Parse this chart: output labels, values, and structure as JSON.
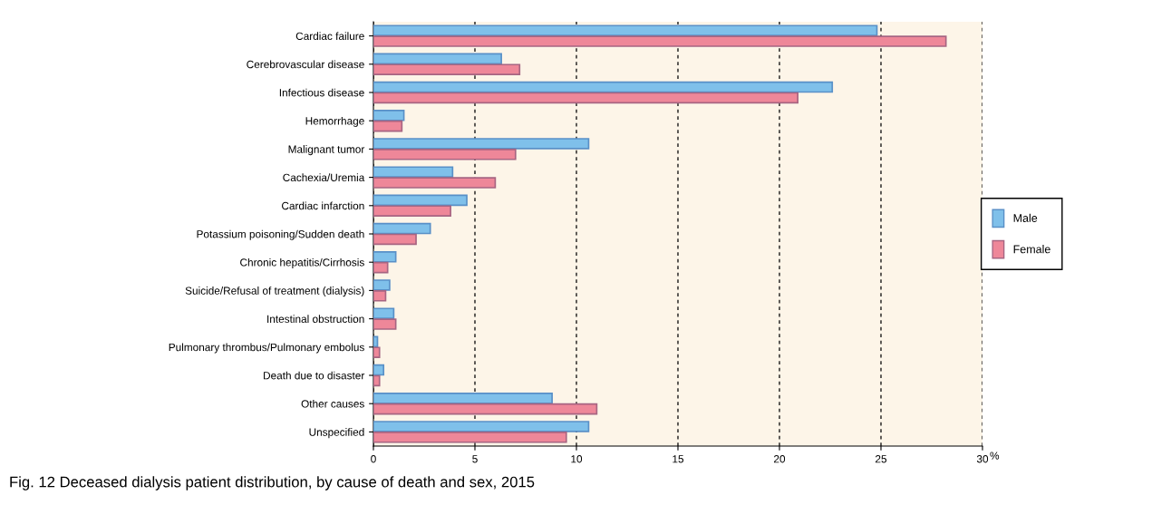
{
  "chart_data": {
    "type": "bar",
    "orientation": "horizontal",
    "title": "Fig. 12 Deceased dialysis patient distribution, by cause of death and sex, 2015",
    "xlabel": "%",
    "categories": [
      "Cardiac failure",
      "Cerebrovascular disease",
      "Infectious disease",
      "Hemorrhage",
      "Malignant tumor",
      "Cachexia/Uremia",
      "Cardiac infarction",
      "Potassium poisoning/Sudden death",
      "Chronic hepatitis/Cirrhosis",
      "Suicide/Refusal of treatment (dialysis)",
      "Intestinal obstruction",
      "Pulmonary thrombus/Pulmonary embolus",
      "Death due to disaster",
      "Other causes",
      "Unspecified"
    ],
    "series": [
      {
        "name": "Male",
        "color": "#7fc0ea",
        "values": [
          24.8,
          6.3,
          22.6,
          1.5,
          10.6,
          3.9,
          4.6,
          2.8,
          1.1,
          0.8,
          1.0,
          0.2,
          0.5,
          8.8,
          10.6
        ]
      },
      {
        "name": "Female",
        "color": "#ee8799",
        "values": [
          28.2,
          7.2,
          20.9,
          1.4,
          7.0,
          6.0,
          3.8,
          2.1,
          0.7,
          0.6,
          1.1,
          0.3,
          0.3,
          11.0,
          9.5
        ]
      }
    ],
    "xlim": [
      0,
      30
    ],
    "xticks": [
      0,
      5,
      10,
      15,
      20,
      25,
      30
    ],
    "grid": "x",
    "legend": "right"
  }
}
